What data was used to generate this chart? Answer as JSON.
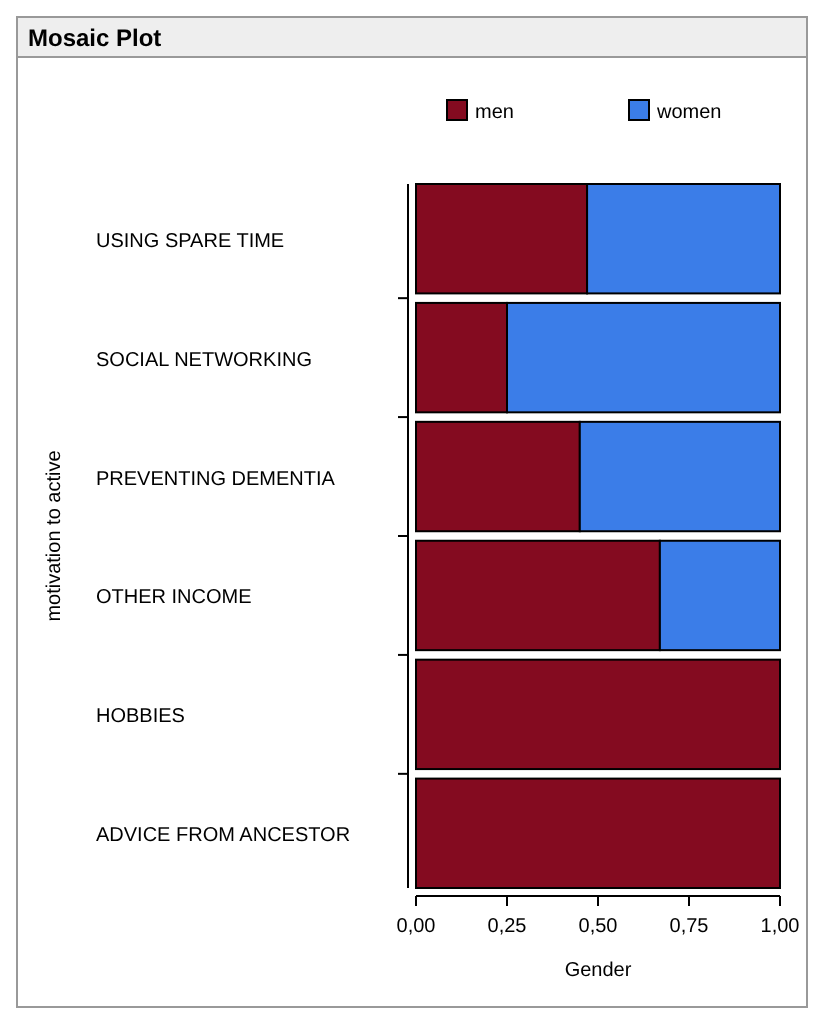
{
  "chart_data": {
    "type": "bar",
    "orientation": "horizontal",
    "stacked": true,
    "title": "Mosaic Plot",
    "xlabel": "Gender",
    "ylabel": "motivation to active",
    "categories": [
      "USING SPARE TIME",
      "SOCIAL NETWORKING",
      "PREVENTING DEMENTIA",
      "OTHER INCOME",
      "HOBBIES",
      "ADVICE FROM ANCESTOR"
    ],
    "series": [
      {
        "name": "men",
        "color": "#840b20",
        "values": [
          0.47,
          0.25,
          0.45,
          0.67,
          1,
          1
        ]
      },
      {
        "name": "women",
        "color": "#3b7de8",
        "values": [
          0.53,
          0.75,
          0.55,
          0.33,
          0,
          0
        ]
      }
    ],
    "xlim": [
      0,
      1
    ],
    "xticks": [
      {
        "value": 0,
        "label": "0,00"
      },
      {
        "value": 0.25,
        "label": "0,25"
      },
      {
        "value": 0.5,
        "label": "0,50"
      },
      {
        "value": 0.75,
        "label": "0,75"
      },
      {
        "value": 1,
        "label": "1,00"
      }
    ],
    "legend": "top"
  }
}
